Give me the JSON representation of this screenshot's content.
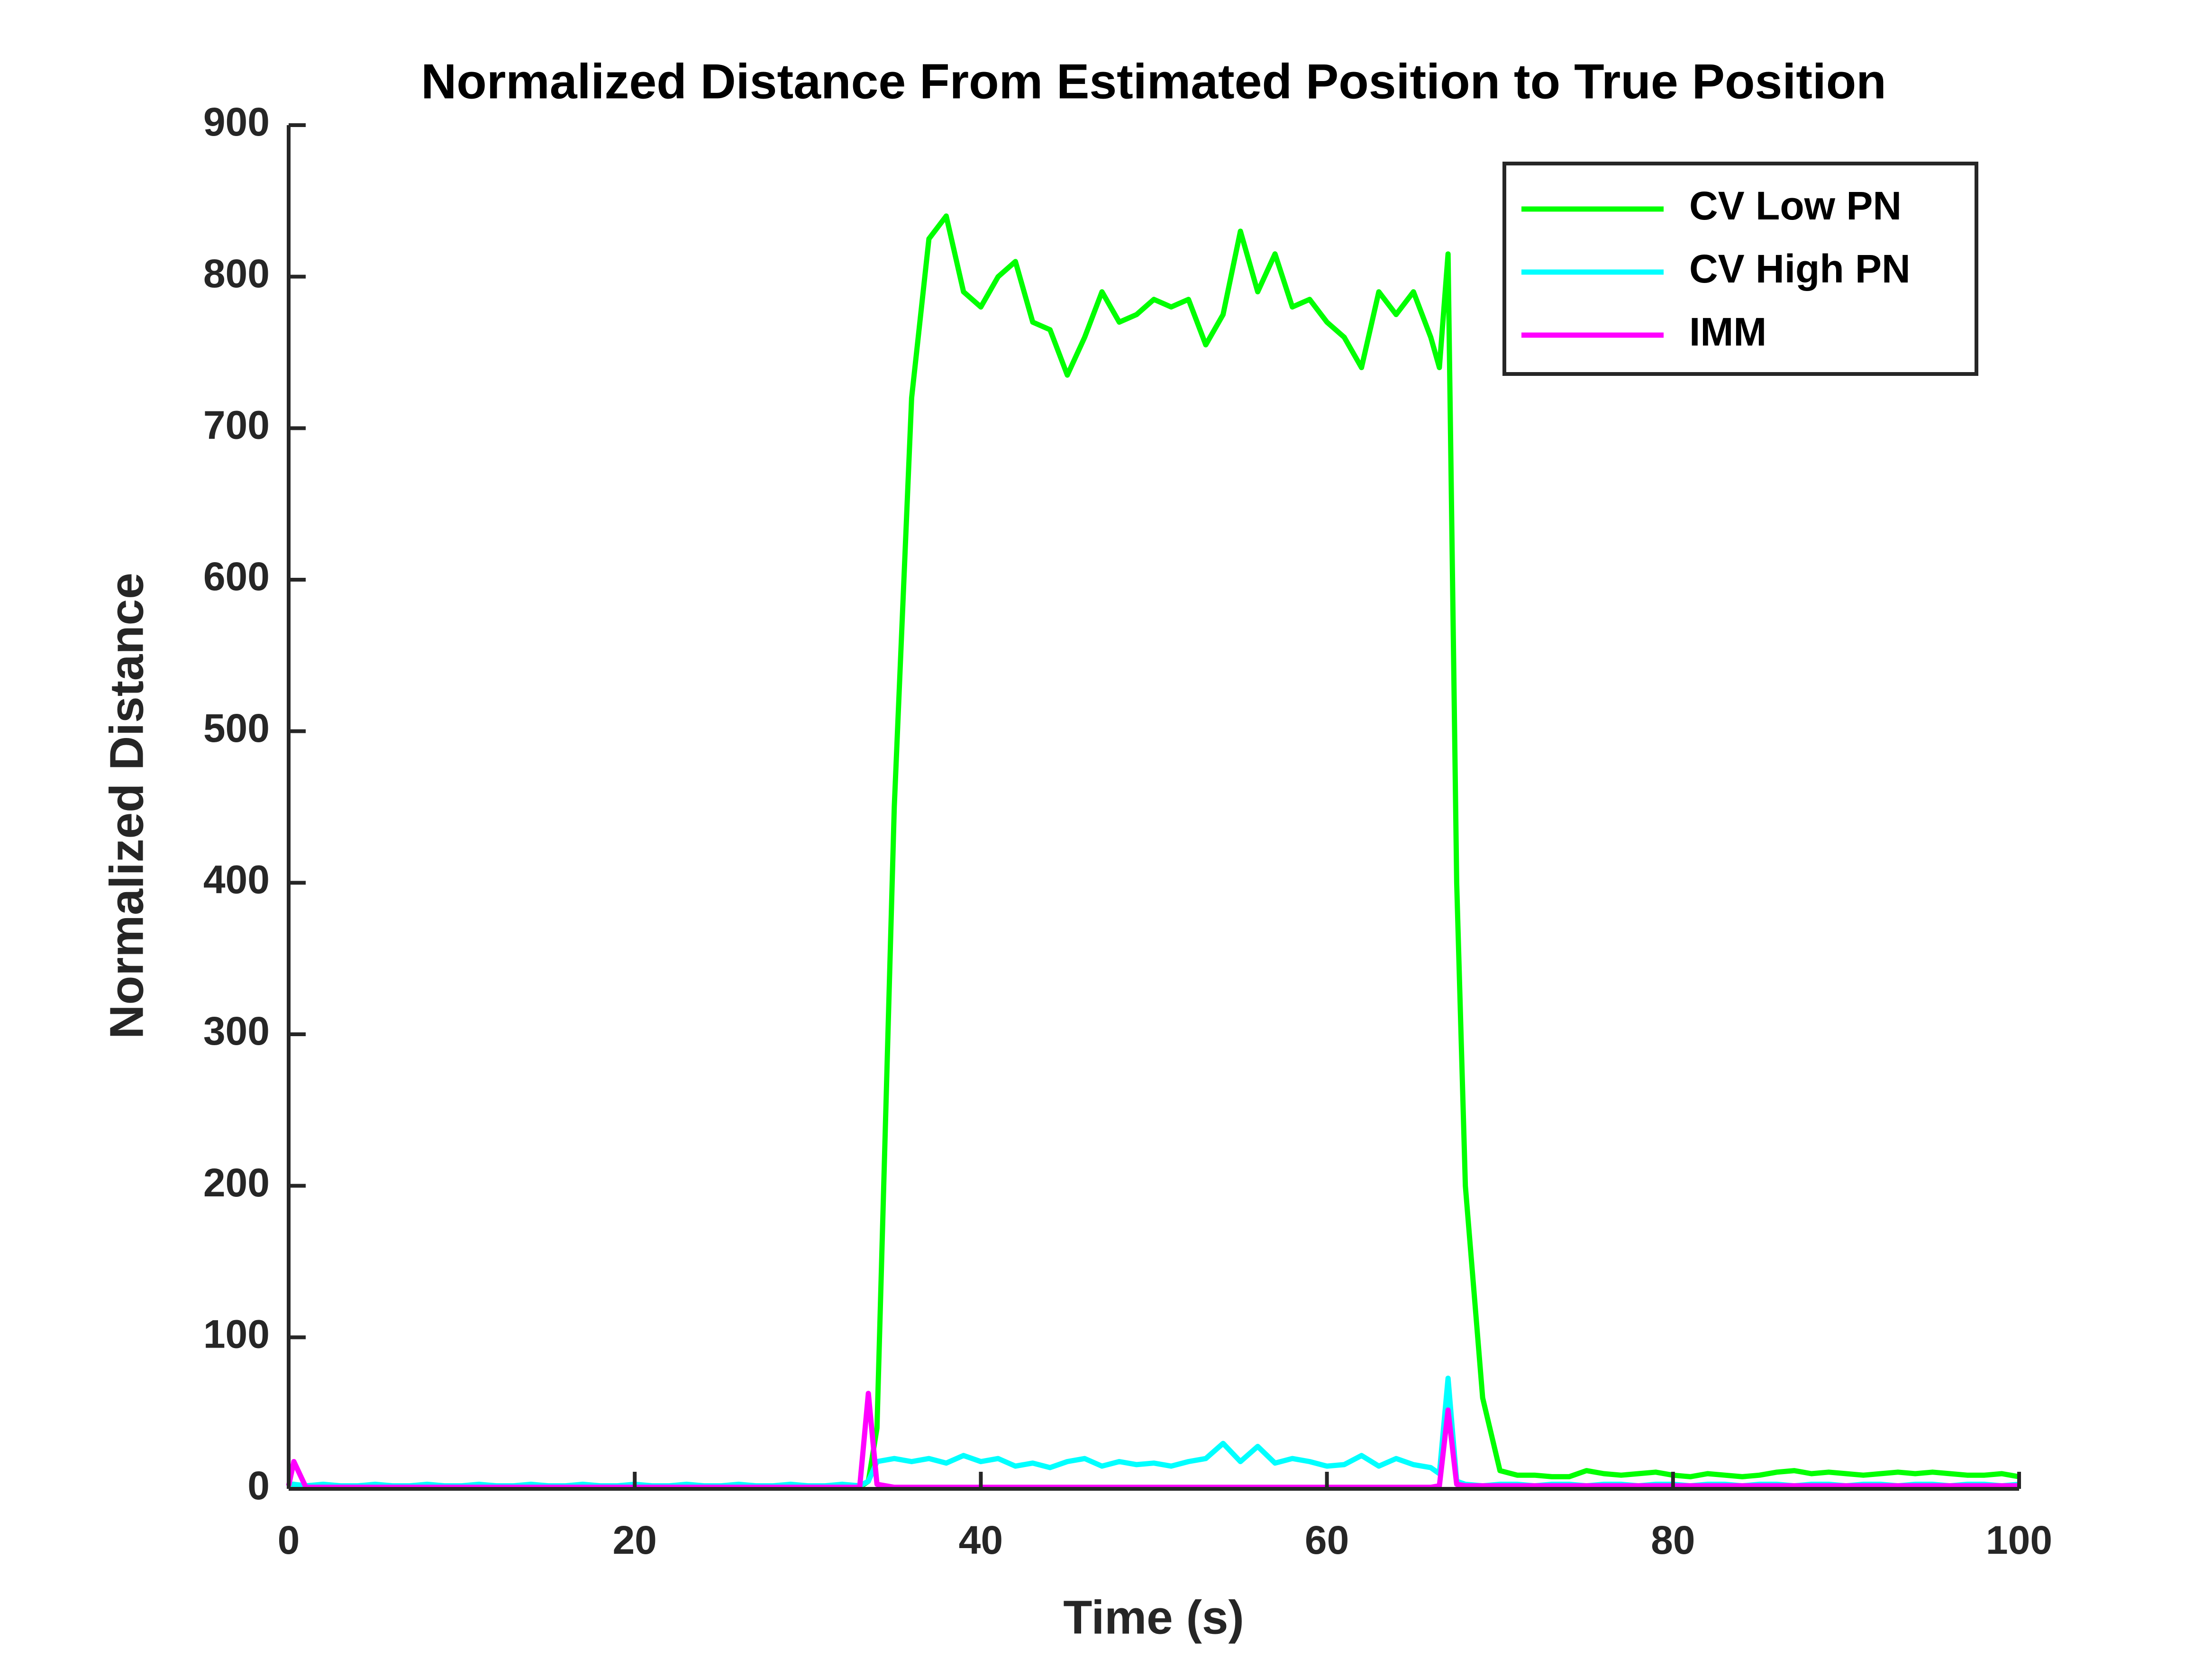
{
  "chart_data": {
    "type": "line",
    "title": "Normalized Distance From Estimated Position to True Position",
    "xlabel": "Time (s)",
    "ylabel": "Normalized Distance",
    "x": [
      0,
      0.3,
      1,
      2,
      3,
      4,
      5,
      6,
      7,
      8,
      9,
      10,
      11,
      12,
      13,
      14,
      15,
      16,
      17,
      18,
      19,
      20,
      21,
      22,
      23,
      24,
      25,
      26,
      27,
      28,
      29,
      30,
      31,
      32,
      33,
      33.5,
      34,
      35,
      36,
      37,
      38,
      39,
      40,
      41,
      42,
      43,
      44,
      45,
      46,
      47,
      48,
      49,
      50,
      51,
      52,
      53,
      54,
      55,
      56,
      57,
      58,
      59,
      60,
      61,
      62,
      63,
      64,
      65,
      66,
      66.5,
      67,
      67.5,
      68,
      69,
      70,
      71,
      72,
      73,
      74,
      75,
      76,
      77,
      78,
      79,
      80,
      81,
      82,
      83,
      84,
      85,
      86,
      87,
      88,
      89,
      90,
      91,
      92,
      93,
      94,
      95,
      96,
      97,
      98,
      99,
      100
    ],
    "series": [
      {
        "name": "CV Low PN",
        "color": "#00ff00",
        "values": [
          2,
          3,
          1,
          2,
          1,
          1,
          2,
          1,
          1,
          2,
          1,
          1,
          2,
          1,
          1,
          2,
          1,
          1,
          2,
          1,
          1,
          2,
          1,
          1,
          2,
          1,
          1,
          2,
          1,
          1,
          2,
          1,
          1,
          2,
          1,
          5,
          40,
          450,
          720,
          825,
          840,
          790,
          780,
          800,
          810,
          770,
          765,
          735,
          760,
          790,
          770,
          775,
          785,
          780,
          785,
          755,
          775,
          830,
          790,
          815,
          780,
          785,
          770,
          760,
          740,
          790,
          775,
          790,
          760,
          740,
          815,
          400,
          200,
          60,
          12,
          9,
          9,
          8,
          8,
          12,
          10,
          9,
          10,
          11,
          9,
          8,
          10,
          9,
          8,
          9,
          11,
          12,
          10,
          11,
          10,
          9,
          10,
          11,
          10,
          11,
          10,
          9,
          9,
          10,
          8
        ]
      },
      {
        "name": "CV High PN",
        "color": "#00ffff",
        "values": [
          3,
          3,
          2,
          3,
          2,
          2,
          3,
          2,
          2,
          3,
          2,
          2,
          3,
          2,
          2,
          3,
          2,
          2,
          3,
          2,
          2,
          3,
          2,
          2,
          3,
          2,
          2,
          3,
          2,
          2,
          3,
          2,
          2,
          3,
          2,
          5,
          18,
          20,
          18,
          20,
          17,
          22,
          18,
          20,
          15,
          17,
          14,
          18,
          20,
          15,
          18,
          16,
          17,
          15,
          18,
          20,
          30,
          18,
          28,
          17,
          20,
          18,
          15,
          16,
          22,
          15,
          20,
          16,
          14,
          10,
          73,
          5,
          3,
          2,
          3,
          3,
          2,
          3,
          3,
          2,
          3,
          3,
          2,
          3,
          3,
          2,
          3,
          3,
          2,
          3,
          3,
          2,
          3,
          3,
          2,
          3,
          3,
          2,
          3,
          3,
          2,
          3,
          3,
          2,
          3
        ]
      },
      {
        "name": "IMM",
        "color": "#ff00ff",
        "values": [
          2,
          18,
          1,
          1,
          1,
          1,
          1,
          1,
          1,
          1,
          1,
          1,
          1,
          1,
          1,
          1,
          1,
          1,
          1,
          1,
          1,
          1,
          1,
          1,
          1,
          1,
          1,
          1,
          1,
          1,
          1,
          1,
          1,
          1,
          1,
          63,
          3,
          1,
          1,
          1,
          1,
          1,
          1,
          1,
          1,
          1,
          1,
          1,
          1,
          1,
          1,
          1,
          1,
          1,
          1,
          1,
          1,
          1,
          1,
          1,
          1,
          1,
          1,
          1,
          1,
          1,
          1,
          1,
          1,
          2,
          52,
          3,
          2,
          2,
          2,
          2,
          2,
          2,
          2,
          2,
          2,
          2,
          2,
          2,
          2,
          2,
          2,
          2,
          2,
          2,
          2,
          2,
          2,
          2,
          2,
          2,
          2,
          2,
          2,
          2,
          2,
          2,
          2,
          2,
          2
        ]
      }
    ],
    "xlim": [
      0,
      100
    ],
    "xticks": [
      0,
      20,
      40,
      60,
      80,
      100
    ],
    "ylim": [
      0,
      900
    ],
    "yticks": [
      0,
      100,
      200,
      300,
      400,
      500,
      600,
      700,
      800,
      900
    ],
    "legend": "upper right"
  }
}
